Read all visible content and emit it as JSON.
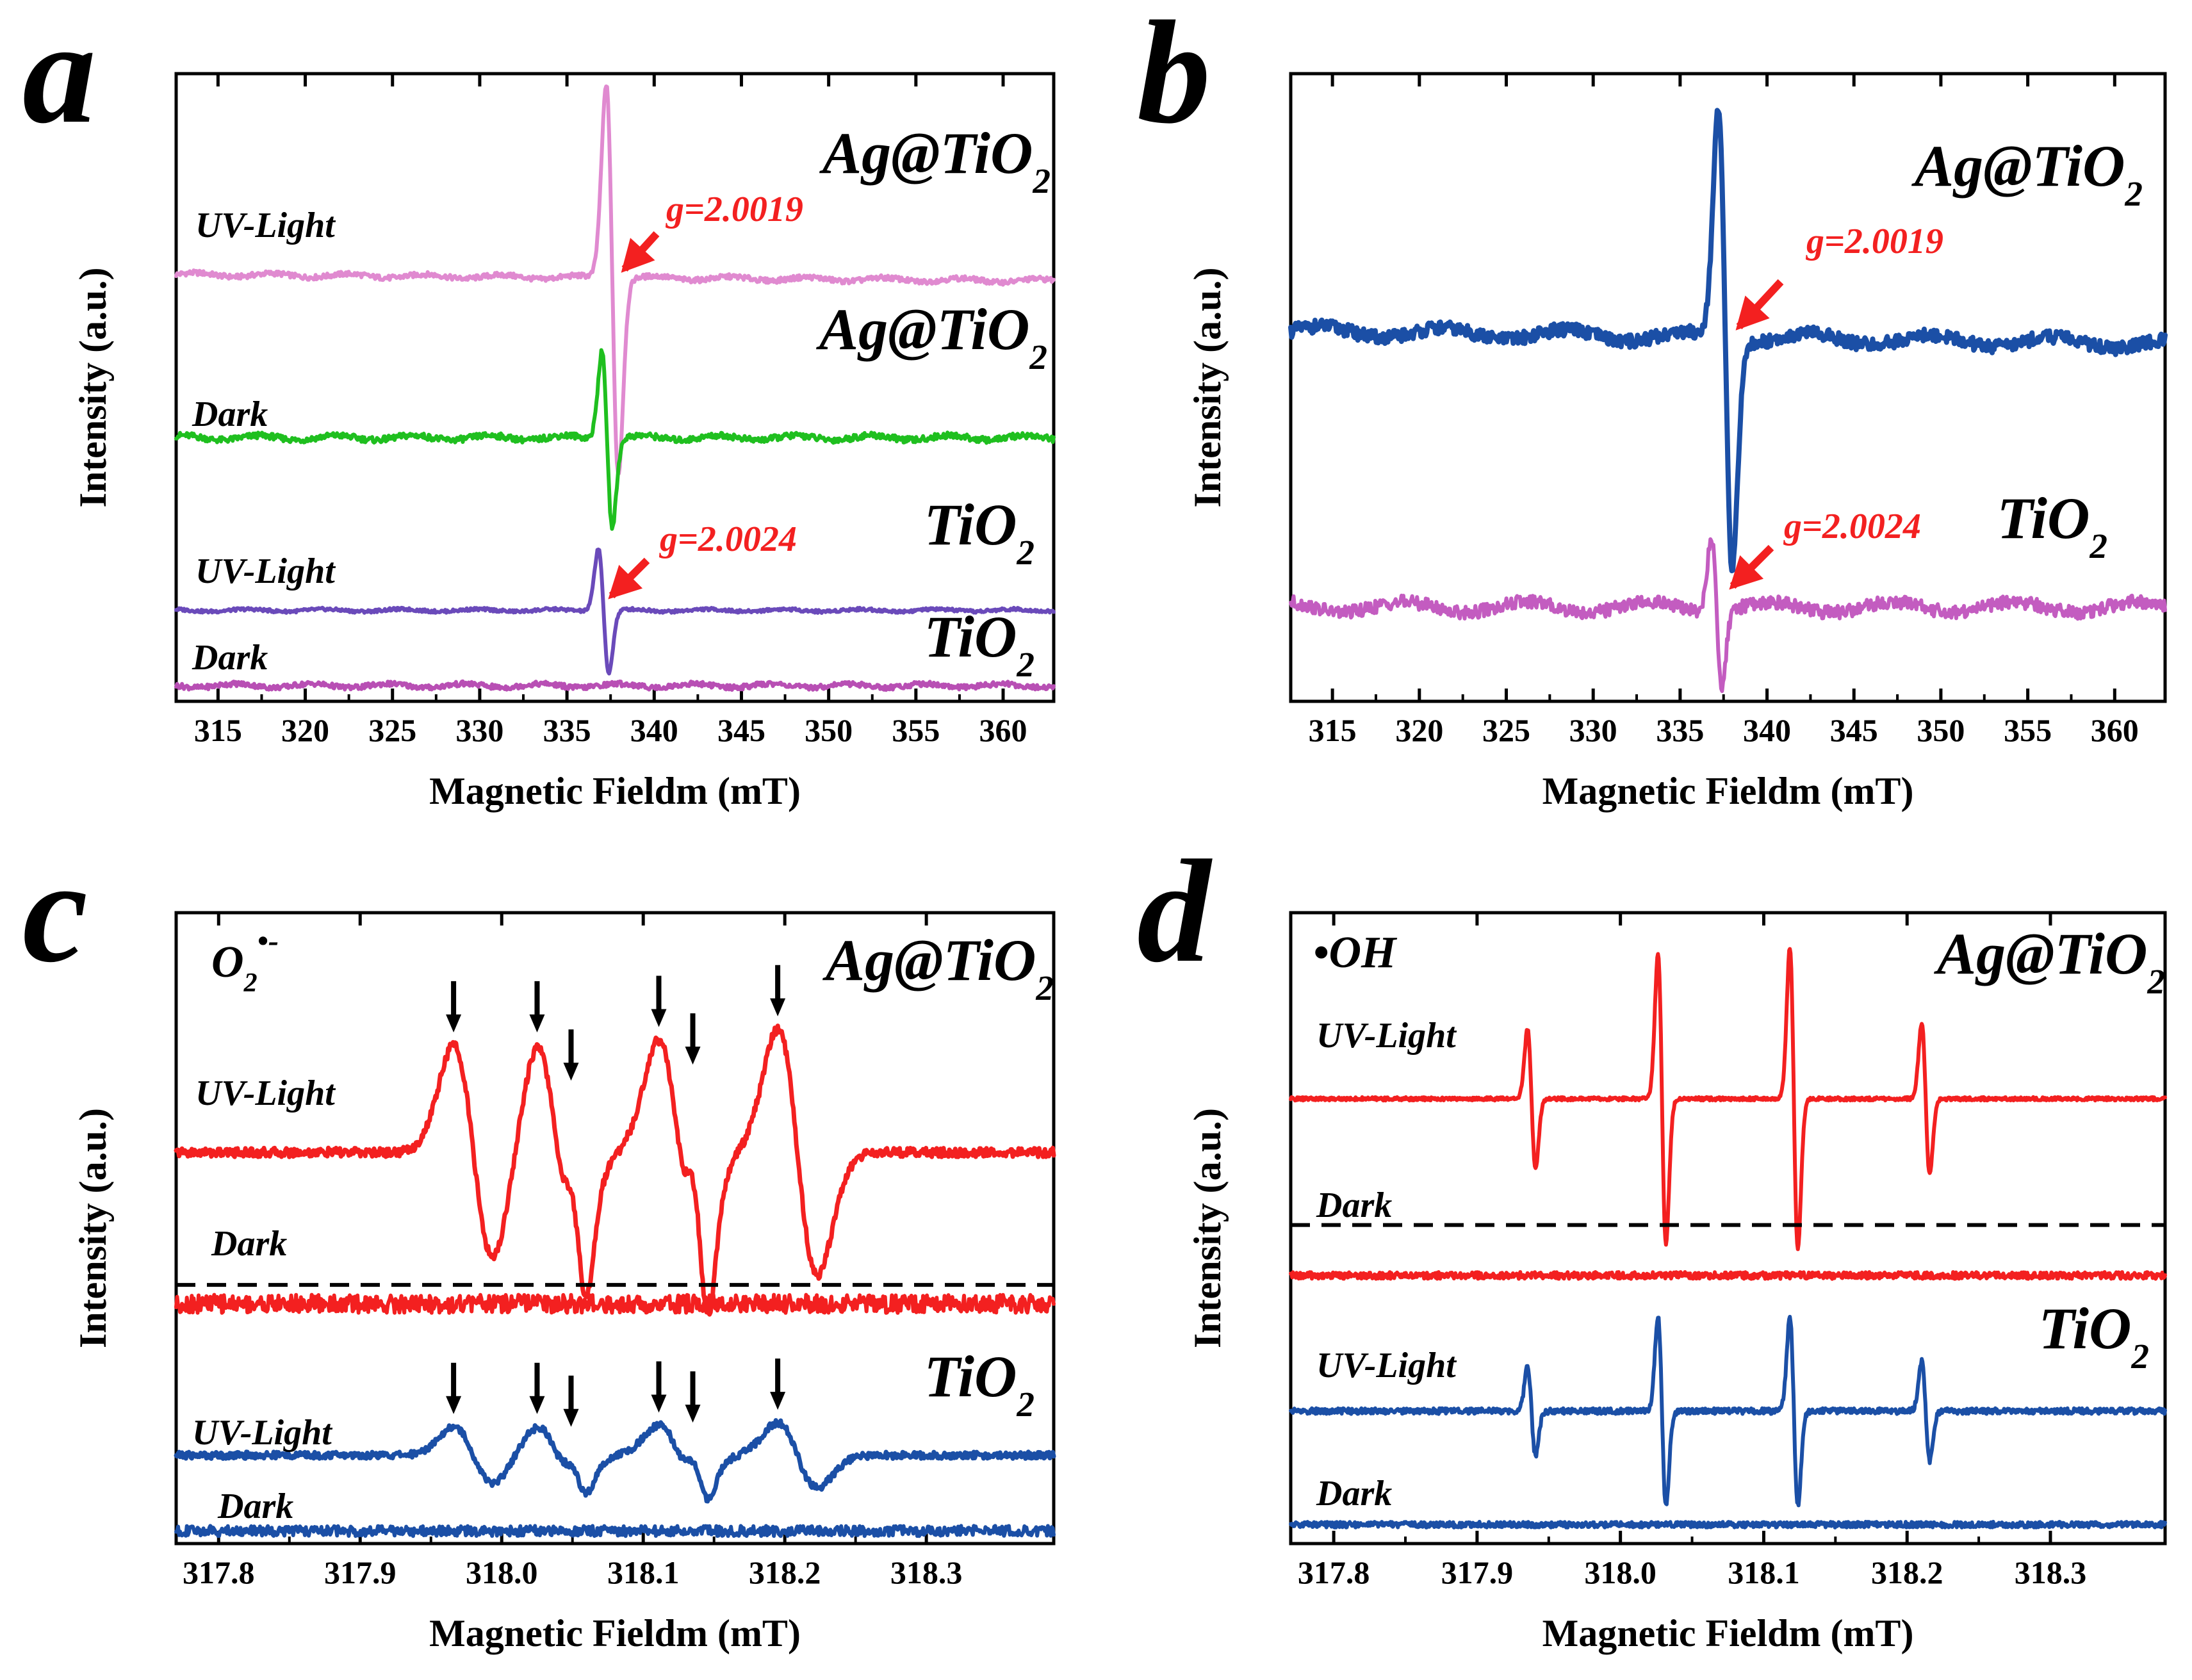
{
  "figure": {
    "panels": [
      {
        "id": "a",
        "letter": "a",
        "xlabel": "Magnetic Fieldm (mT)",
        "ylabel": "Intensity (a.u.)",
        "ticks": [
          "315",
          "320",
          "325",
          "330",
          "335",
          "340",
          "345",
          "350",
          "355",
          "360"
        ],
        "labels": [
          {
            "text": "Ag@TiO",
            "sub": "2",
            "kind": "sample"
          },
          {
            "text": "Ag@TiO",
            "sub": "2",
            "kind": "sample"
          },
          {
            "text": "TiO",
            "sub": "2",
            "kind": "sample"
          },
          {
            "text": "TiO",
            "sub": "2",
            "kind": "sample"
          },
          {
            "text": "UV-Light",
            "kind": "cond"
          },
          {
            "text": "Dark",
            "kind": "cond"
          },
          {
            "text": "UV-Light",
            "kind": "cond"
          },
          {
            "text": "Dark",
            "kind": "cond"
          },
          {
            "text": "g=2.0019",
            "kind": "g"
          },
          {
            "text": "g=2.0024",
            "kind": "g"
          }
        ]
      },
      {
        "id": "b",
        "letter": "b",
        "xlabel": "Magnetic Fieldm (mT)",
        "ylabel": "Intensity (a.u.)",
        "ticks": [
          "315",
          "320",
          "325",
          "330",
          "335",
          "340",
          "345",
          "350",
          "355",
          "360"
        ],
        "labels": [
          {
            "text": "Ag@TiO",
            "sub": "2",
            "kind": "sample"
          },
          {
            "text": "TiO",
            "sub": "2",
            "kind": "sample"
          },
          {
            "text": "g=2.0019",
            "kind": "g"
          },
          {
            "text": "g=2.0024",
            "kind": "g"
          }
        ]
      },
      {
        "id": "c",
        "letter": "c",
        "xlabel": "Magnetic Fieldm (mT)",
        "ylabel": "Intensity (a.u.)",
        "ticks": [
          "317.8",
          "317.9",
          "318.0",
          "318.1",
          "318.2",
          "318.3"
        ],
        "labels": [
          {
            "text": "Ag@TiO",
            "sub": "2",
            "kind": "sample"
          },
          {
            "text": "TiO",
            "sub": "2",
            "kind": "sample"
          },
          {
            "text": "UV-Light",
            "kind": "cond"
          },
          {
            "text": "Dark",
            "kind": "cond"
          },
          {
            "text": "UV-Light",
            "kind": "cond"
          },
          {
            "text": "Dark",
            "kind": "cond"
          },
          {
            "text": "O",
            "sub": "2",
            "sup": "•-",
            "kind": "radical"
          }
        ]
      },
      {
        "id": "d",
        "letter": "d",
        "xlabel": "Magnetic Fieldm (mT)",
        "ylabel": "Intensity (a.u.)",
        "ticks": [
          "317.8",
          "317.9",
          "318.0",
          "318.1",
          "318.2",
          "318.3"
        ],
        "labels": [
          {
            "text": "Ag@TiO",
            "sub": "2",
            "kind": "sample"
          },
          {
            "text": "TiO",
            "sub": "2",
            "kind": "sample"
          },
          {
            "text": "UV-Light",
            "kind": "cond"
          },
          {
            "text": "Dark",
            "kind": "cond"
          },
          {
            "text": "UV-Light",
            "kind": "cond"
          },
          {
            "text": "Dark",
            "kind": "cond"
          },
          {
            "text": "•OH",
            "kind": "radical"
          }
        ]
      }
    ]
  },
  "chart_data": [
    {
      "panel": "a",
      "type": "line",
      "title": "",
      "xlabel": "Magnetic Fieldm (mT)",
      "ylabel": "Intensity (a.u.)",
      "xlim": [
        312.6,
        362.9
      ],
      "ylim": [
        0,
        100
      ],
      "xticks": [
        315,
        320,
        325,
        330,
        335,
        340,
        345,
        350,
        355,
        360
      ],
      "series": [
        {
          "name": "Ag@TiO2 UV-Light",
          "color": "#e08ad0",
          "baseline": 68,
          "noise": 0.5,
          "center": 337.6,
          "amplitude": 31,
          "width": 0.35,
          "g": "2.0019"
        },
        {
          "name": "Ag@TiO2 Dark",
          "color": "#1fbf1f",
          "baseline": 42,
          "noise": 0.6,
          "center": 337.3,
          "amplitude": 14,
          "width": 0.3
        },
        {
          "name": "TiO2 UV-Light",
          "color": "#6a4aba",
          "baseline": 14.5,
          "noise": 0.3,
          "center": 337.1,
          "amplitude": 10,
          "width": 0.3,
          "g": "2.0024"
        },
        {
          "name": "TiO2 Dark",
          "color": "#b84fb4",
          "baseline": 2.5,
          "noise": 0.5
        }
      ]
    },
    {
      "panel": "b",
      "type": "line",
      "title": "",
      "xlabel": "Magnetic Fieldm (mT)",
      "ylabel": "Intensity (a.u.)",
      "xlim": [
        312.6,
        362.9
      ],
      "ylim": [
        0,
        100
      ],
      "xticks": [
        315,
        320,
        325,
        330,
        335,
        340,
        345,
        350,
        355,
        360
      ],
      "series": [
        {
          "name": "Ag@TiO2",
          "color": "#1b4fa6",
          "baseline": 59,
          "noise": 1.4,
          "center": 337.6,
          "amplitude": 36,
          "width": 0.4,
          "g": "2.0019"
        },
        {
          "name": "TiO2",
          "color": "#c35cc0",
          "baseline": 15,
          "noise": 1.4,
          "center": 337.1,
          "amplitude": 12,
          "width": 0.3,
          "g": "2.0024"
        }
      ]
    },
    {
      "panel": "c",
      "type": "line",
      "title": "",
      "xlabel": "Magnetic Fieldm (mT)",
      "ylabel": "Intensity (a.u.)",
      "xlim": [
        317.77,
        318.39
      ],
      "ylim": [
        0,
        100
      ],
      "xticks": [
        317.8,
        317.9,
        318.0,
        318.1,
        318.2,
        318.3
      ],
      "radical": "O2•-",
      "series": [
        {
          "name": "Ag@TiO2 UV-Light",
          "color": "#f32020",
          "baseline": 62,
          "noise": 0.8,
          "amplitude": 17,
          "peaks": [
            317.966,
            318.025,
            318.049,
            318.111,
            318.135,
            318.195
          ]
        },
        {
          "name": "Ag@TiO2 Dark",
          "color": "#f32020",
          "baseline": 38,
          "noise": 1.6
        },
        {
          "name": "TiO2 UV-Light",
          "color": "#1b4fa6",
          "baseline": 14,
          "noise": 0.6,
          "amplitude": 4.5,
          "peaks": [
            317.966,
            318.025,
            318.049,
            318.111,
            318.135,
            318.195
          ]
        },
        {
          "name": "TiO2 Dark",
          "color": "#1b4fa6",
          "baseline": 2,
          "noise": 0.9
        }
      ]
    },
    {
      "panel": "d",
      "type": "line",
      "title": "",
      "xlabel": "Magnetic Fieldm (mT)",
      "ylabel": "Intensity (a.u.)",
      "xlim": [
        317.77,
        318.38
      ],
      "ylim": [
        0,
        100
      ],
      "xticks": [
        317.8,
        317.9,
        318.0,
        318.1,
        318.2,
        318.3
      ],
      "radical": "•OH",
      "series": [
        {
          "name": "Ag@TiO2 UV-Light",
          "color": "#f32020",
          "baseline": 70.5,
          "noise": 0.3,
          "peaks": [
            317.938,
            318.029,
            318.121,
            318.213
          ],
          "amplitudes": [
            11,
            23,
            24,
            12
          ]
        },
        {
          "name": "Ag@TiO2 Dark",
          "color": "#f32020",
          "baseline": 42.5,
          "noise": 0.6
        },
        {
          "name": "TiO2 UV-Light",
          "color": "#1b4fa6",
          "baseline": 21,
          "noise": 0.5,
          "peaks": [
            317.938,
            318.029,
            318.121,
            318.213
          ],
          "amplitudes": [
            7,
            15,
            15,
            8
          ]
        },
        {
          "name": "TiO2 Dark",
          "color": "#1b4fa6",
          "baseline": 3,
          "noise": 0.5
        }
      ]
    }
  ]
}
